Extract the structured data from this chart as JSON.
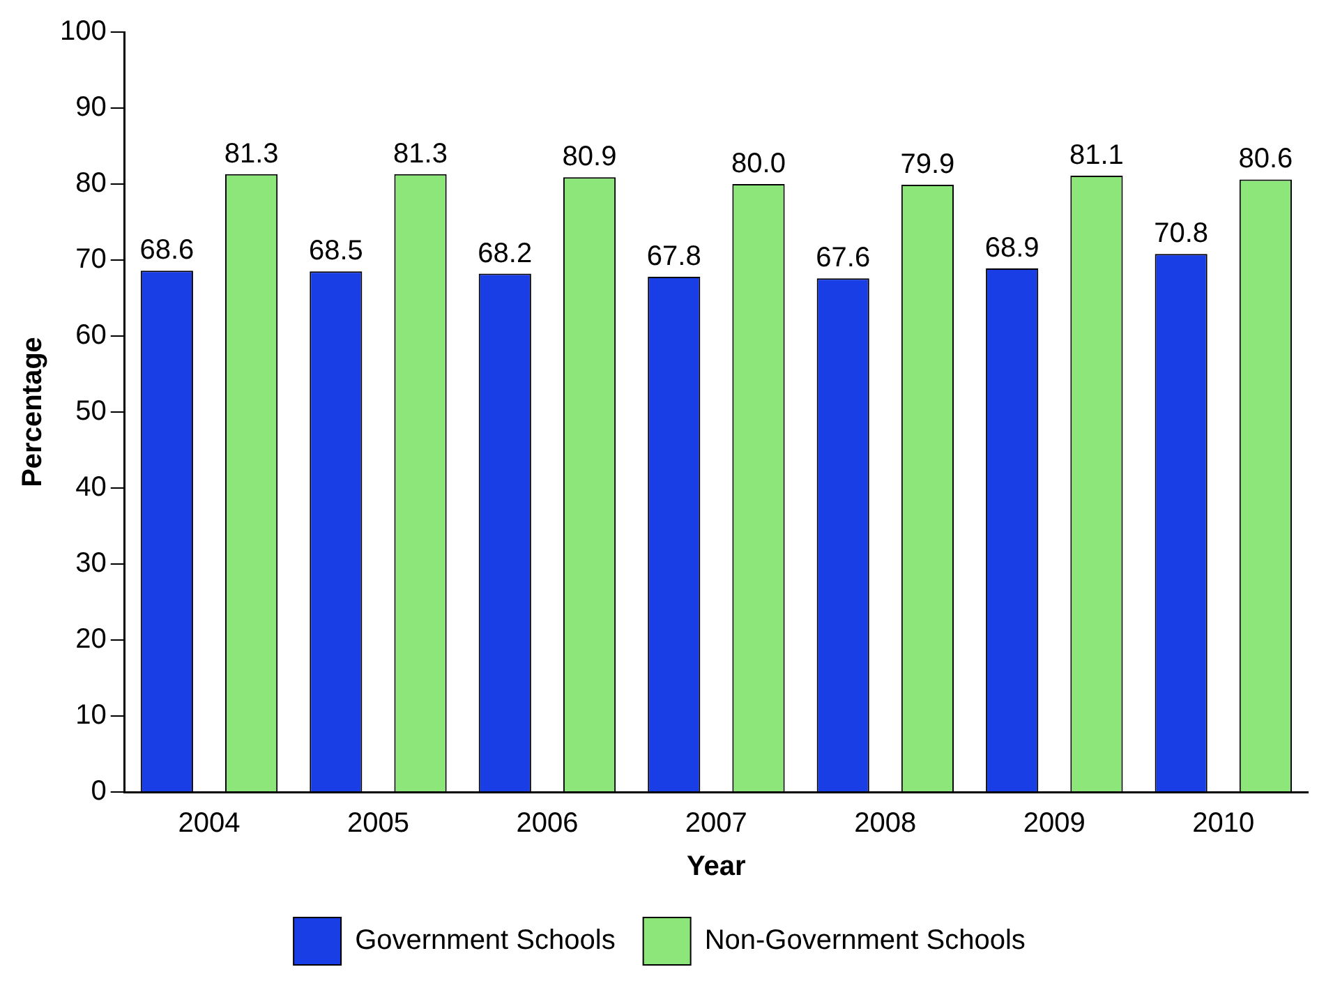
{
  "chart_data": {
    "type": "bar",
    "xlabel": "Year",
    "ylabel": "Percentage",
    "categories": [
      "2004",
      "2005",
      "2006",
      "2007",
      "2008",
      "2009",
      "2010"
    ],
    "series": [
      {
        "name": "Government Schools",
        "color": "#1a3ee6",
        "values": [
          68.6,
          68.5,
          68.2,
          67.8,
          67.6,
          68.9,
          70.8
        ],
        "value_labels": [
          "68.6",
          "68.5",
          "68.2",
          "67.8",
          "67.6",
          "68.9",
          "70.8"
        ]
      },
      {
        "name": "Non-Government Schools",
        "color": "#8ce67a",
        "values": [
          81.3,
          81.3,
          80.9,
          80.0,
          79.9,
          81.1,
          80.6
        ],
        "value_labels": [
          "81.3",
          "81.3",
          "80.9",
          "80.0",
          "79.9",
          "81.1",
          "80.6"
        ]
      }
    ],
    "ylim": [
      0,
      100
    ],
    "yticks": [
      0,
      10,
      20,
      30,
      40,
      50,
      60,
      70,
      80,
      90,
      100
    ],
    "grid": false,
    "legend": "bottom"
  }
}
